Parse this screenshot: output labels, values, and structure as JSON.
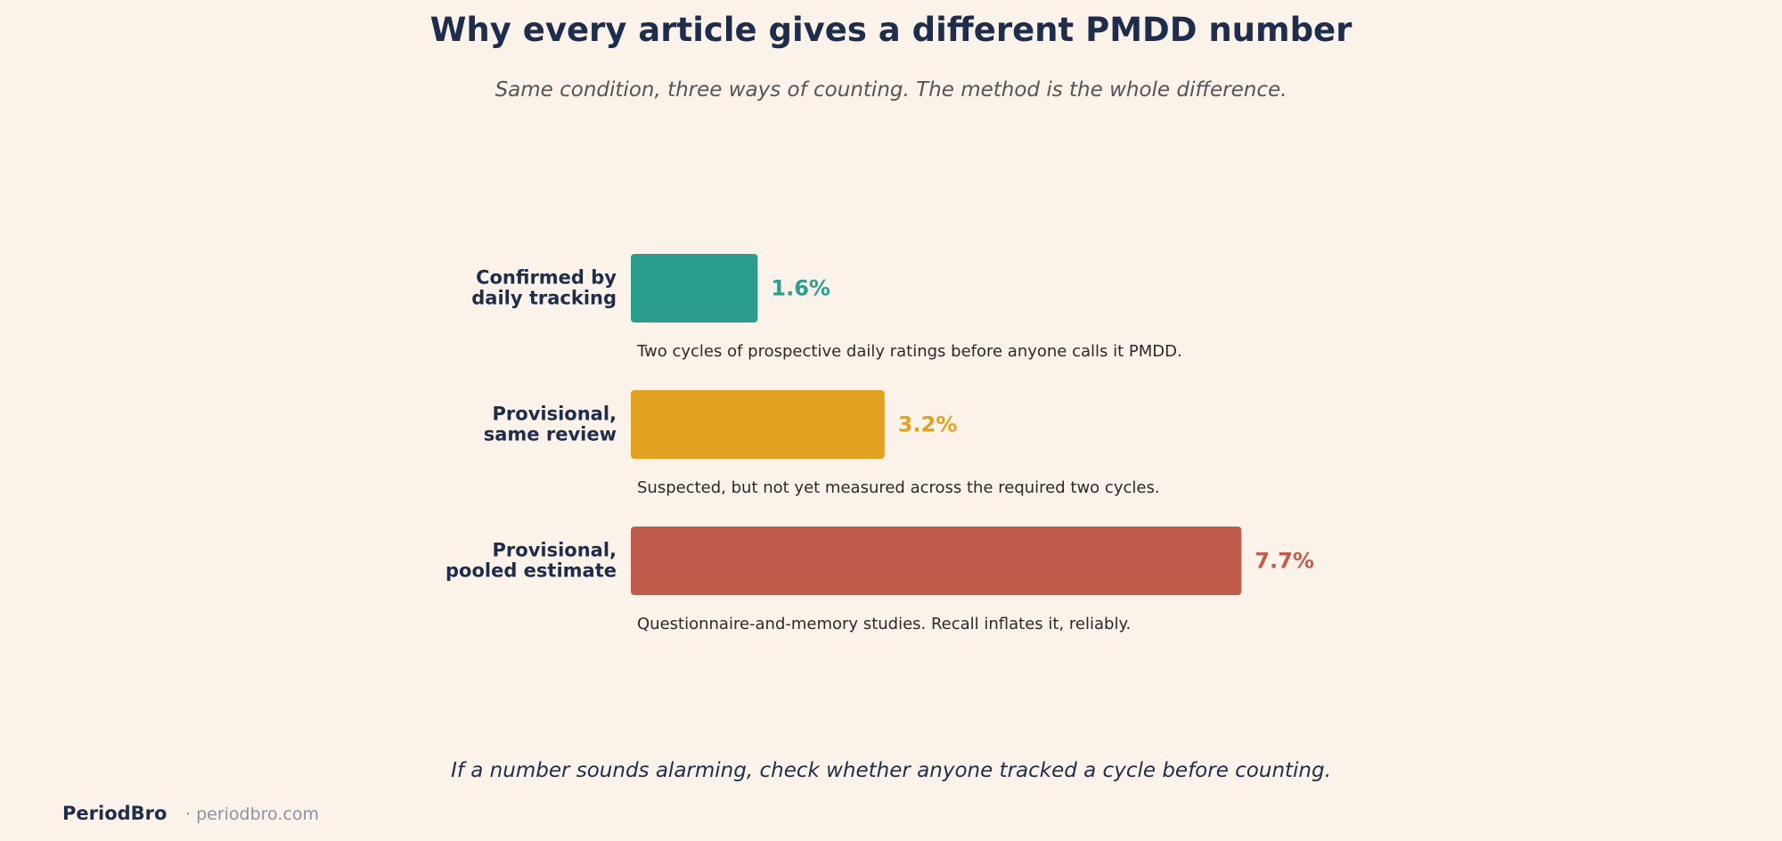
{
  "header": {
    "title": "Why every article gives a different PMDD number",
    "subtitle": "Same condition, three ways of counting. The method is the whole difference."
  },
  "chart_data": {
    "type": "bar",
    "orientation": "horizontal",
    "categories": [
      [
        "Confirmed by",
        "daily tracking"
      ],
      [
        "Provisional,",
        "same review"
      ],
      [
        "Provisional,",
        "pooled estimate"
      ]
    ],
    "values": [
      1.6,
      3.2,
      7.7
    ],
    "value_labels": [
      "1.6%",
      "3.2%",
      "7.7%"
    ],
    "annotations": [
      "Two cycles of prospective daily ratings before anyone calls it PMDD.",
      "Suspected, but not yet measured across the required two cycles.",
      "Questionnaire-and-memory studies. Recall inflates it, reliably."
    ],
    "colors": [
      "#2a9d8f",
      "#e0a220",
      "#c05c4d"
    ],
    "grid": false,
    "axes_visible": false
  },
  "footer": {
    "note": "If a number sounds alarming, check whether anyone tracked a cycle before counting.",
    "brand": "PeriodBro",
    "site": "· periodbro.com"
  }
}
